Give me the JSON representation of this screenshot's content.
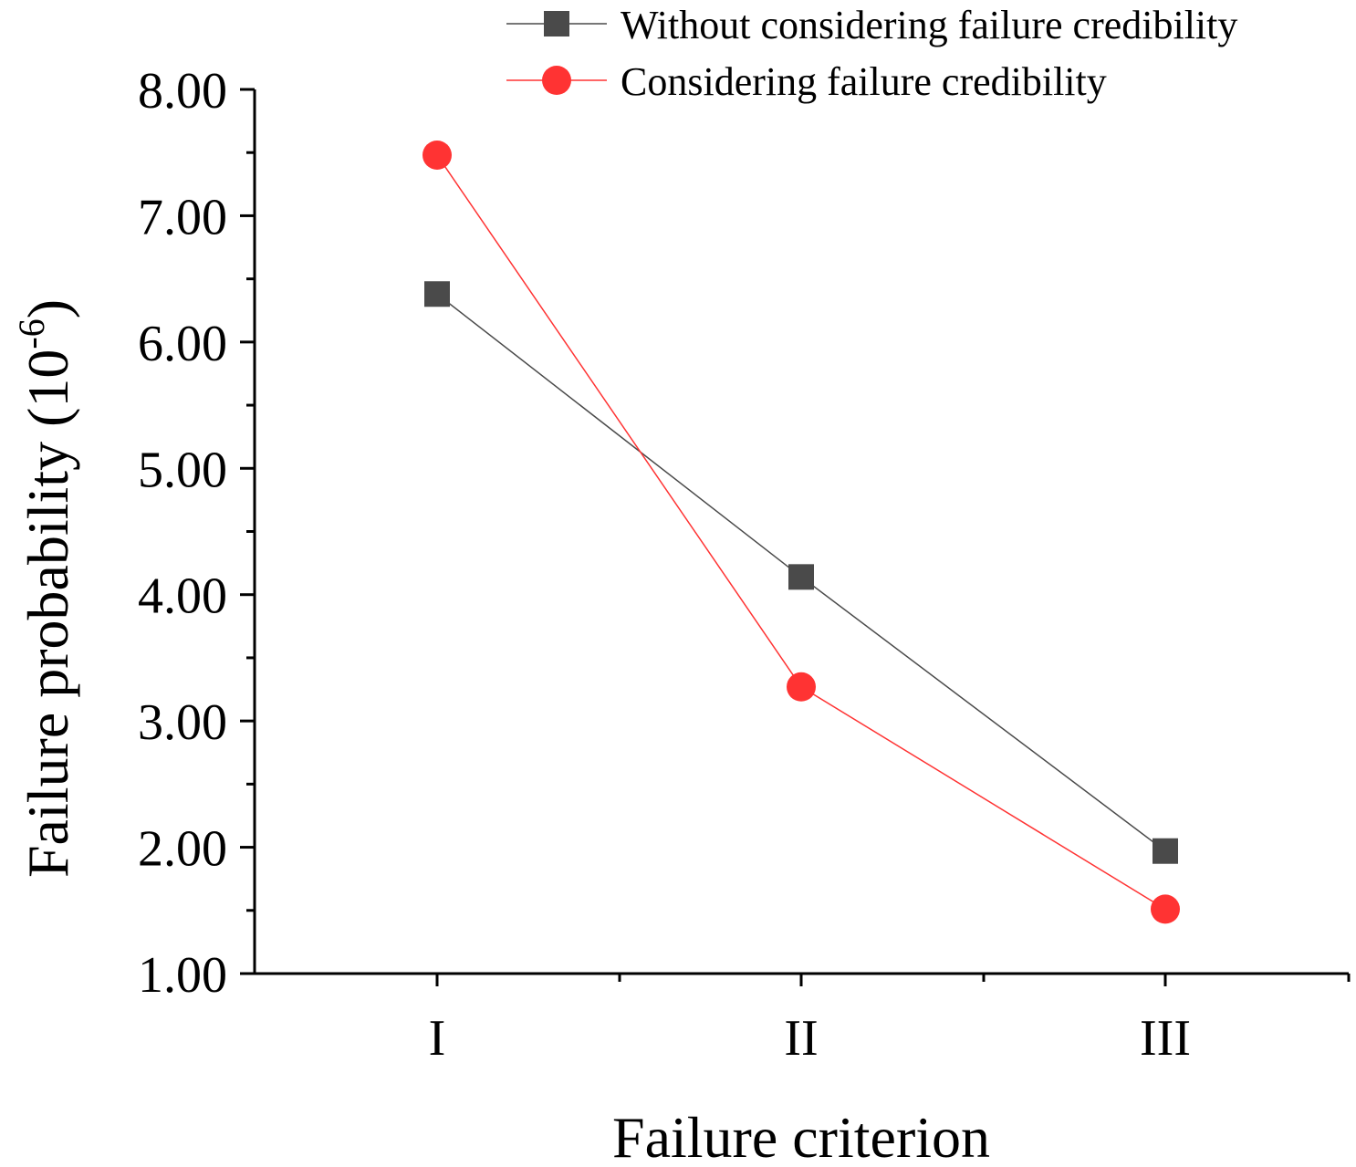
{
  "chart_data": {
    "type": "line",
    "title": "",
    "xlabel": "Failure criterion",
    "ylabel_main": "Failure probability (10",
    "ylabel_exp": "-6",
    "ylabel_close": ")",
    "ylim": [
      1.0,
      8.0
    ],
    "yticks": [
      "1.00",
      "2.00",
      "3.00",
      "4.00",
      "5.00",
      "6.00",
      "7.00",
      "8.00"
    ],
    "categories": [
      "I",
      "II",
      "III"
    ],
    "legend_position": "top-right",
    "series": [
      {
        "name": "Without considering failure credibility",
        "marker": "square",
        "color": "#4a4a4a",
        "values": [
          6.38,
          4.14,
          1.97
        ]
      },
      {
        "name": "Considering failure credibility",
        "marker": "circle",
        "color": "#ff3333",
        "values": [
          7.48,
          3.27,
          1.51
        ]
      }
    ]
  }
}
